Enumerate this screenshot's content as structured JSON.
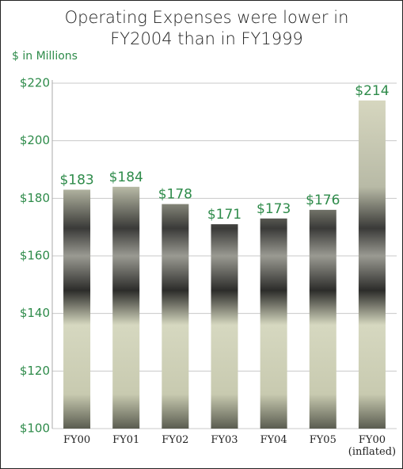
{
  "chart_data": {
    "type": "bar",
    "title": "Operating Expenses were lower in FY2004 than in FY1999",
    "y_label": "$ in Millions",
    "categories": [
      "FY00",
      "FY01",
      "FY02",
      "FY03",
      "FY04",
      "FY05",
      "FY00 (inflated)"
    ],
    "values": [
      183,
      184,
      178,
      171,
      173,
      176,
      214
    ],
    "value_labels": [
      "$183",
      "$184",
      "$178",
      "$171",
      "$173",
      "$176",
      "$214"
    ],
    "ylim": [
      100,
      220
    ],
    "yticks": [
      {
        "value": 100,
        "label": "$100"
      },
      {
        "value": 120,
        "label": "$120"
      },
      {
        "value": 140,
        "label": "$140"
      },
      {
        "value": 160,
        "label": "$160"
      },
      {
        "value": 180,
        "label": "$180"
      },
      {
        "value": 200,
        "label": "$200"
      },
      {
        "value": 220,
        "label": "$220"
      }
    ],
    "grid": true,
    "color": "#2e8b4a"
  }
}
